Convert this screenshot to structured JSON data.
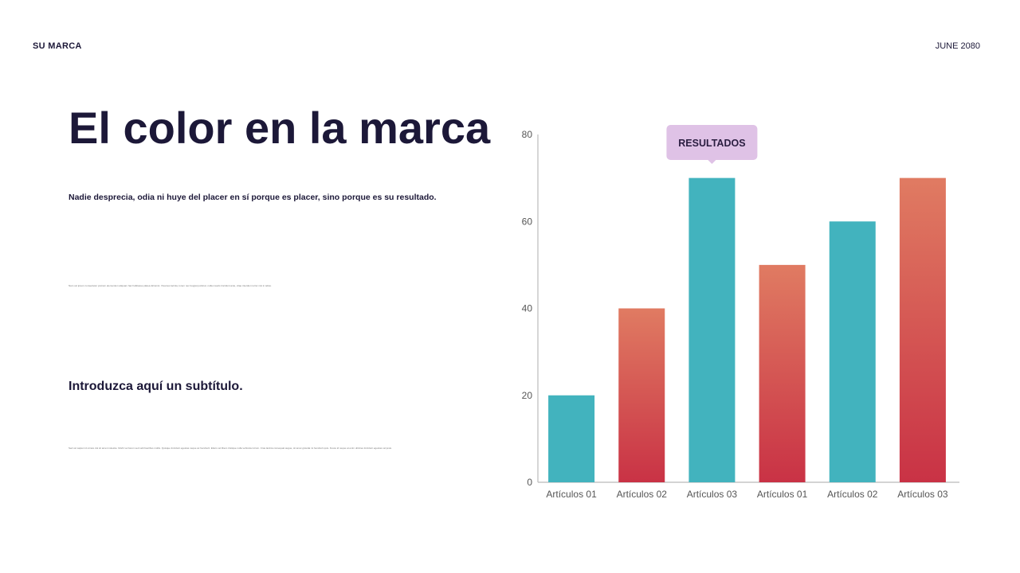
{
  "header": {
    "brand": "SU MARCA",
    "date": "JUNE 2080"
  },
  "main": {
    "title": "El color en la marca",
    "lead": "Nadie desprecia, odia ni huye del placer en sí porque es placer, sino porque es su resultado.",
    "body_1": "Nam vel ipsum consectetur pretium elementum aliquam hac habitasse platea dictumst. Vivamus lacinia, lorem nec feugiat pulvinar, nulla mauris tincidunt ante, vitae interdum tortor nisi in tellus.",
    "subtitle": "Introduzca aquí un subtítulo.",
    "body_2": "Sed vel sapien id ornare dui sit amet molestie. Morbi vel lorem sed velit faucibus mollis. Quisque tincidunt egestas neque ac hendrerit. Etiam vel libero tristique nulla vehicula rutrum. Cras lacinia consequat augue, sit amet gravida mi hendrerit quis. Fusce id neque at enim ultricies tincidunt egestas vel justo."
  },
  "chart_data": {
    "type": "bar",
    "categories": [
      "Artículos 01",
      "Artículos 02",
      "Artículos 03",
      "Artículos 01",
      "Artículos 02",
      "Artículos 03"
    ],
    "values": [
      20,
      40,
      70,
      50,
      60,
      70
    ],
    "ylim": [
      0,
      80
    ],
    "yticks": [
      0,
      20,
      40,
      60,
      80
    ],
    "grid": false,
    "bar_colors": [
      "teal",
      "gradient",
      "teal",
      "gradient",
      "teal",
      "gradient"
    ],
    "colors": {
      "teal": "#42b3be",
      "gradient_top": "#e07b62",
      "gradient_bottom": "#c93245",
      "axis": "#bbbbbb",
      "callout": "#dfc2e6"
    },
    "annotation": {
      "text": "RESULTADOS",
      "category_index": 2
    }
  }
}
